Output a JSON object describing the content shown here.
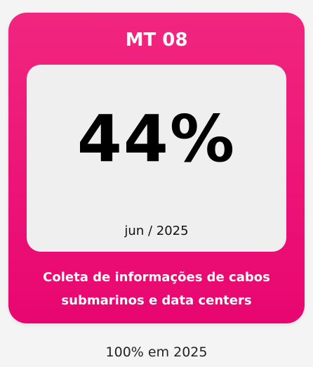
{
  "card": {
    "title": "MT 08",
    "value": "44%",
    "date": "jun / 2025",
    "description": "Coleta de informações de cabos submarinos e data centers"
  },
  "footer": "100% em 2025"
}
